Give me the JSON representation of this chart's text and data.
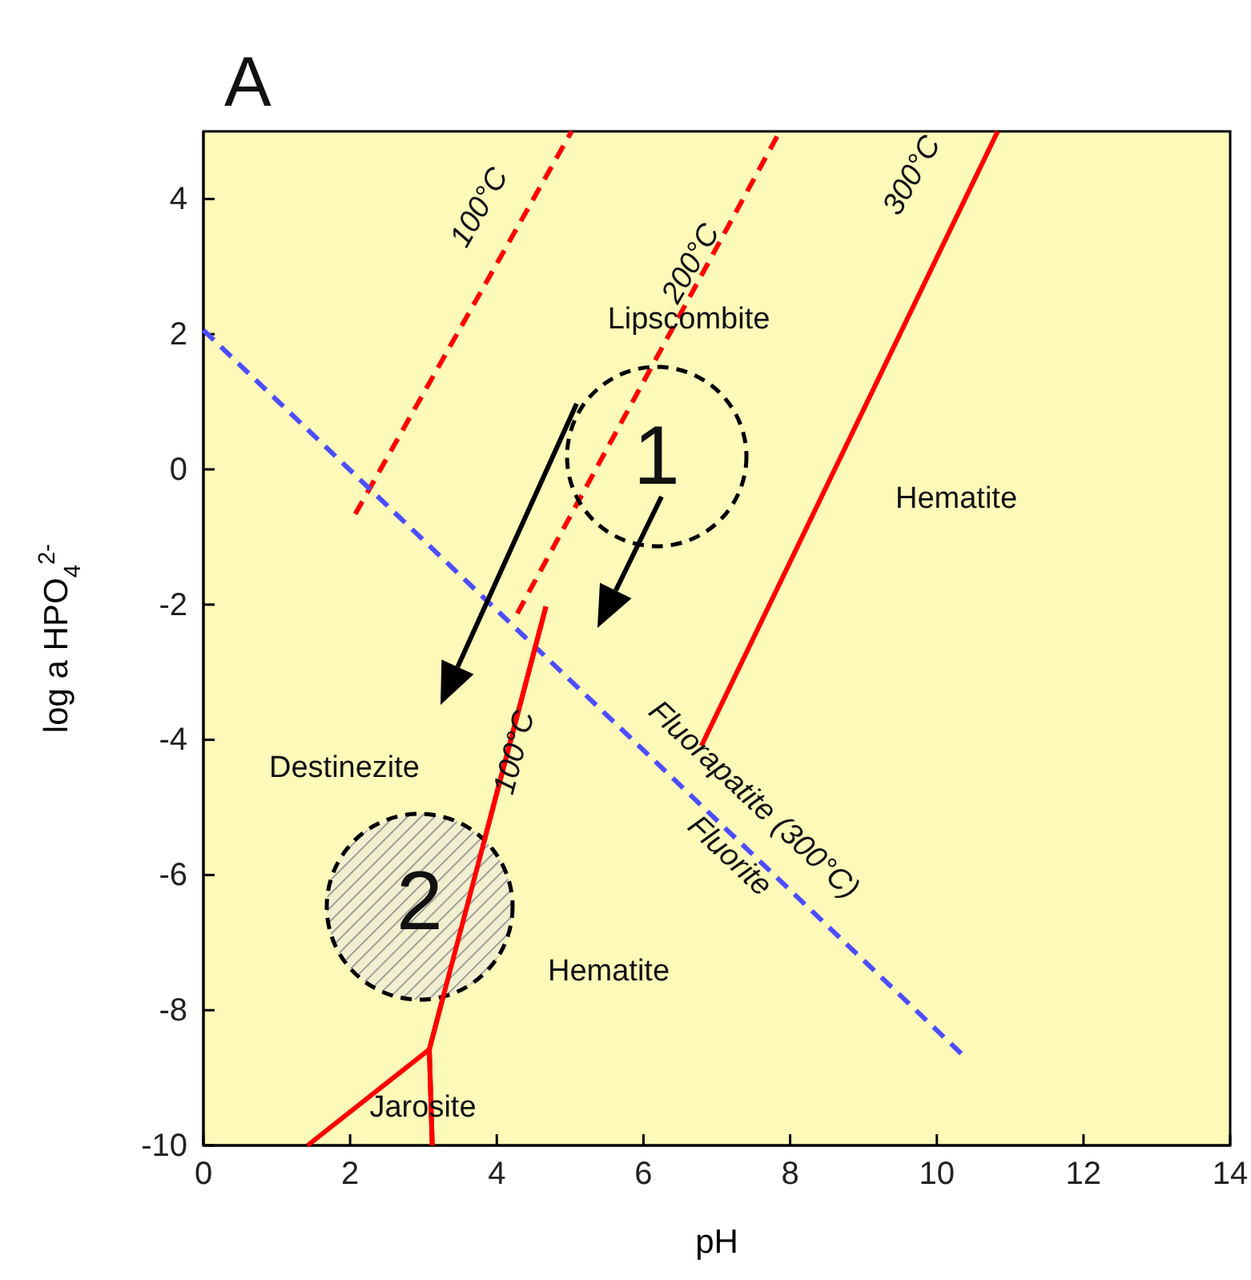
{
  "chart_data": {
    "type": "line",
    "title": "A",
    "xlabel": "pH",
    "ylabel": "log a HPO$_{4}$$^{2-}$",
    "xlim": [
      0,
      14
    ],
    "ylim": [
      -10,
      5
    ],
    "xticks": [
      0,
      2,
      4,
      6,
      8,
      10,
      12,
      14
    ],
    "yticks": [
      -10,
      -8,
      -6,
      -4,
      -2,
      0,
      2,
      4
    ],
    "grid": false,
    "marker": "none",
    "series": [
      {
        "color": "#ff0000",
        "line_style": "dashed",
        "x": [
          2.07,
          5.02
        ],
        "values": [
          -0.66,
          5
        ]
      },
      {
        "color": "#ff0000",
        "line_style": "dashed",
        "x": [
          4.28,
          7.86
        ],
        "values": [
          -2.13,
          5
        ]
      },
      {
        "color": "#ff0000",
        "line_style": "solid",
        "x": [
          6.79,
          10.83
        ],
        "values": [
          -4.09,
          5
        ]
      },
      {
        "color": "#4d4dff",
        "line_style": "dashed",
        "x": [
          0,
          10.39
        ],
        "values": [
          2.06,
          -8.7
        ]
      },
      {
        "color": "#ff0000",
        "line_style": "solid",
        "x": [
          4.67,
          3.08,
          3.12
        ],
        "values": [
          -2.03,
          -8.58,
          -10
        ]
      },
      {
        "color": "#ff0000",
        "line_style": "solid",
        "x": [
          3.08,
          1.42
        ],
        "values": [
          -8.58,
          -10
        ]
      }
    ],
    "annotations": [
      "100°C",
      "200°C",
      "300°C",
      "Lipscombite",
      "Hematite",
      "Destinezite",
      "Fluorapatite (300°C)",
      "Fluorite",
      "100°C",
      "Hematite",
      "Jarosite",
      "1",
      "2"
    ]
  }
}
